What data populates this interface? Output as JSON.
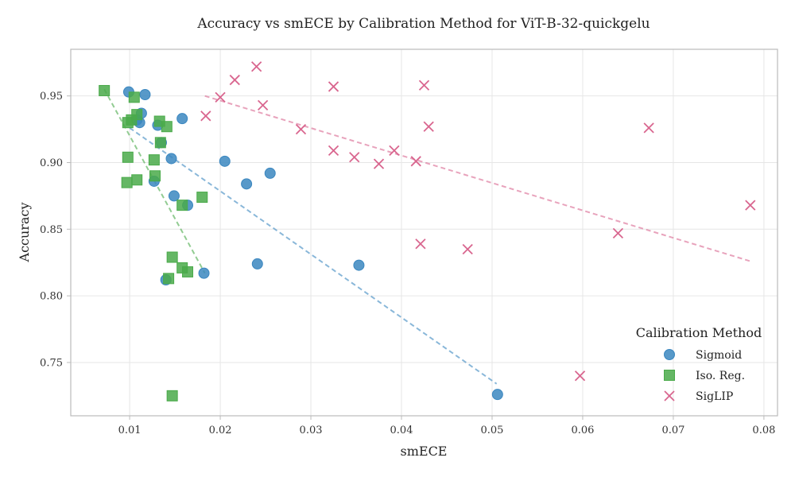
{
  "chart_data": {
    "type": "scatter",
    "title": "Accuracy vs smECE by Calibration Method for ViT-B-32-quickgelu",
    "xlabel": "smECE",
    "ylabel": "Accuracy",
    "xlim": [
      0.0035,
      0.0815
    ],
    "ylim": [
      0.71,
      0.985
    ],
    "x_ticks": [
      0.01,
      0.02,
      0.03,
      0.04,
      0.05,
      0.06,
      0.07,
      0.08
    ],
    "x_tick_labels": [
      "0.01",
      "0.02",
      "0.03",
      "0.04",
      "0.05",
      "0.06",
      "0.07",
      "0.08"
    ],
    "y_ticks": [
      0.75,
      0.8,
      0.85,
      0.9,
      0.95
    ],
    "y_tick_labels": [
      "0.75",
      "0.80",
      "0.85",
      "0.90",
      "0.95"
    ],
    "grid": true,
    "legend": {
      "title": "Calibration Method",
      "placement": "lower-right"
    },
    "series": [
      {
        "name": "Sigmoid",
        "marker": "circle",
        "color": "#3b87c0",
        "trend": {
          "x": [
            0.01,
            0.0505
          ],
          "y": [
            0.926,
            0.734
          ]
        },
        "points": [
          {
            "x": 0.0099,
            "y": 0.953
          },
          {
            "x": 0.0117,
            "y": 0.951
          },
          {
            "x": 0.0113,
            "y": 0.937
          },
          {
            "x": 0.0108,
            "y": 0.932
          },
          {
            "x": 0.0111,
            "y": 0.93
          },
          {
            "x": 0.0131,
            "y": 0.928
          },
          {
            "x": 0.0158,
            "y": 0.933
          },
          {
            "x": 0.0135,
            "y": 0.915
          },
          {
            "x": 0.0146,
            "y": 0.903
          },
          {
            "x": 0.0205,
            "y": 0.901
          },
          {
            "x": 0.0255,
            "y": 0.892
          },
          {
            "x": 0.0229,
            "y": 0.884
          },
          {
            "x": 0.0127,
            "y": 0.886
          },
          {
            "x": 0.0149,
            "y": 0.875
          },
          {
            "x": 0.0164,
            "y": 0.868
          },
          {
            "x": 0.014,
            "y": 0.812
          },
          {
            "x": 0.0182,
            "y": 0.817
          },
          {
            "x": 0.0241,
            "y": 0.824
          },
          {
            "x": 0.0353,
            "y": 0.823
          },
          {
            "x": 0.0506,
            "y": 0.726
          }
        ]
      },
      {
        "name": "Iso. Reg.",
        "marker": "square",
        "color": "#4aaa4a",
        "trend": {
          "x": [
            0.0072,
            0.0183
          ],
          "y": [
            0.955,
            0.817
          ]
        },
        "points": [
          {
            "x": 0.0072,
            "y": 0.954
          },
          {
            "x": 0.0105,
            "y": 0.949
          },
          {
            "x": 0.0108,
            "y": 0.936
          },
          {
            "x": 0.0102,
            "y": 0.932
          },
          {
            "x": 0.0098,
            "y": 0.93
          },
          {
            "x": 0.0133,
            "y": 0.931
          },
          {
            "x": 0.0141,
            "y": 0.927
          },
          {
            "x": 0.0134,
            "y": 0.915
          },
          {
            "x": 0.0098,
            "y": 0.904
          },
          {
            "x": 0.0127,
            "y": 0.902
          },
          {
            "x": 0.0128,
            "y": 0.89
          },
          {
            "x": 0.0108,
            "y": 0.887
          },
          {
            "x": 0.0097,
            "y": 0.885
          },
          {
            "x": 0.018,
            "y": 0.874
          },
          {
            "x": 0.0158,
            "y": 0.868
          },
          {
            "x": 0.0147,
            "y": 0.829
          },
          {
            "x": 0.0158,
            "y": 0.821
          },
          {
            "x": 0.0164,
            "y": 0.818
          },
          {
            "x": 0.0143,
            "y": 0.813
          },
          {
            "x": 0.0147,
            "y": 0.725
          }
        ]
      },
      {
        "name": "SigLIP",
        "marker": "x",
        "color": "#d9668f",
        "trend": {
          "x": [
            0.0183,
            0.0785
          ],
          "y": [
            0.95,
            0.826
          ]
        },
        "points": [
          {
            "x": 0.024,
            "y": 0.972
          },
          {
            "x": 0.0216,
            "y": 0.962
          },
          {
            "x": 0.02,
            "y": 0.949
          },
          {
            "x": 0.0184,
            "y": 0.935
          },
          {
            "x": 0.0247,
            "y": 0.943
          },
          {
            "x": 0.0325,
            "y": 0.957
          },
          {
            "x": 0.0425,
            "y": 0.958
          },
          {
            "x": 0.0289,
            "y": 0.925
          },
          {
            "x": 0.043,
            "y": 0.927
          },
          {
            "x": 0.0673,
            "y": 0.926
          },
          {
            "x": 0.0325,
            "y": 0.909
          },
          {
            "x": 0.0392,
            "y": 0.909
          },
          {
            "x": 0.0348,
            "y": 0.904
          },
          {
            "x": 0.0375,
            "y": 0.899
          },
          {
            "x": 0.0416,
            "y": 0.901
          },
          {
            "x": 0.0785,
            "y": 0.868
          },
          {
            "x": 0.0639,
            "y": 0.847
          },
          {
            "x": 0.0421,
            "y": 0.839
          },
          {
            "x": 0.0473,
            "y": 0.835
          },
          {
            "x": 0.0597,
            "y": 0.74
          }
        ]
      }
    ]
  }
}
